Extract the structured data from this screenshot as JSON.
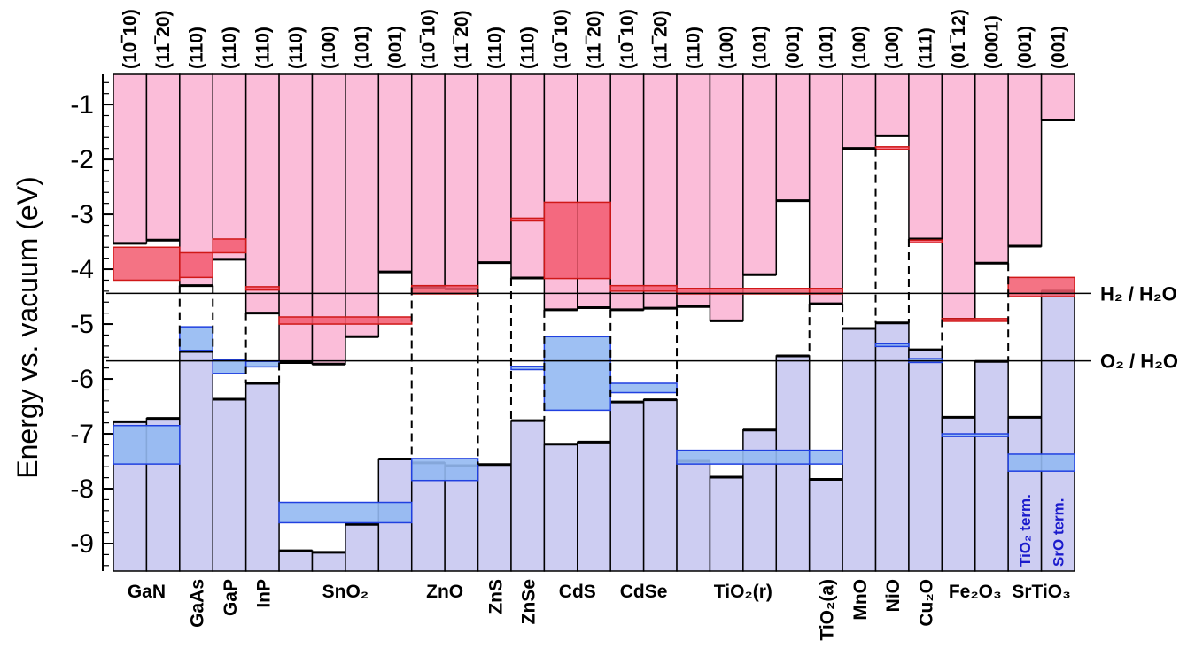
{
  "colors": {
    "cb_fill": "#fbbdd9",
    "vb_fill": "#cdcdf2",
    "cb_band": "#f25a6e",
    "cb_band_line": "#d01818",
    "vb_band": "#93b9f2",
    "vb_band_dark": "#6a92ee",
    "vb_band_line": "#2040e0",
    "term_text": "#1a1acc"
  },
  "chart_data": {
    "type": "bar",
    "title": "",
    "xlabel": "",
    "ylabel": "Energy vs. vacuum (eV)",
    "ylim": [
      -9.5,
      -0.45
    ],
    "yticks": [
      -1,
      -2,
      -3,
      -4,
      -5,
      -6,
      -7,
      -8,
      -9
    ],
    "ytick_labels": [
      "-1",
      "-2",
      "-3",
      "-4",
      "-5",
      "-6",
      "-7",
      "-8",
      "-9"
    ],
    "reference_lines": [
      {
        "name": "H2/H2O",
        "value": -4.44,
        "label": "H₂ / H₂O"
      },
      {
        "name": "O2/H2O",
        "value": -5.67,
        "label": "O₂ / H₂O"
      }
    ],
    "facets": [
      {
        "facet": "(10‾10)",
        "cbm": -3.53,
        "vbm": -6.78
      },
      {
        "facet": "(11‾20)",
        "cbm": -3.47,
        "vbm": -6.72
      },
      {
        "facet": "(110)",
        "cbm": -4.3,
        "vbm": -5.5
      },
      {
        "facet": "(110)",
        "cbm": -3.82,
        "vbm": -6.37
      },
      {
        "facet": "(110)",
        "cbm": -4.8,
        "vbm": -6.08
      },
      {
        "facet": "(110)",
        "cbm": -5.7,
        "vbm": -9.13
      },
      {
        "facet": "(100)",
        "cbm": -5.73,
        "vbm": -9.16
      },
      {
        "facet": "(101)",
        "cbm": -5.23,
        "vbm": -8.65
      },
      {
        "facet": "(001)",
        "cbm": -4.05,
        "vbm": -7.46
      },
      {
        "facet": "(10‾10)",
        "cbm": -4.33,
        "vbm": -7.53
      },
      {
        "facet": "(11‾20)",
        "cbm": -4.36,
        "vbm": -7.58
      },
      {
        "facet": "(110)",
        "cbm": -3.88,
        "vbm": -7.56
      },
      {
        "facet": "(110)",
        "cbm": -4.16,
        "vbm": -6.76
      },
      {
        "facet": "(10‾10)",
        "cbm": -4.74,
        "vbm": -7.19
      },
      {
        "facet": "(11‾20)",
        "cbm": -4.7,
        "vbm": -7.15
      },
      {
        "facet": "(10‾10)",
        "cbm": -4.74,
        "vbm": -6.42
      },
      {
        "facet": "(11‾20)",
        "cbm": -4.71,
        "vbm": -6.38
      },
      {
        "facet": "(110)",
        "cbm": -4.68,
        "vbm": -7.5
      },
      {
        "facet": "(100)",
        "cbm": -4.94,
        "vbm": -7.79
      },
      {
        "facet": "(101)",
        "cbm": -4.1,
        "vbm": -6.93
      },
      {
        "facet": "(001)",
        "cbm": -2.75,
        "vbm": -5.58
      },
      {
        "facet": "(101)",
        "cbm": -4.63,
        "vbm": -7.83
      },
      {
        "facet": "(100)",
        "cbm": -1.8,
        "vbm": -5.08
      },
      {
        "facet": "(100)",
        "cbm": -1.57,
        "vbm": -4.98
      },
      {
        "facet": "(111)",
        "cbm": -3.45,
        "vbm": -5.47
      },
      {
        "facet": "(01‾12)",
        "cbm": -4.91,
        "vbm": -6.7
      },
      {
        "facet": "(0001)",
        "cbm": -3.89,
        "vbm": -5.68
      },
      {
        "facet": "(001)",
        "cbm": -3.58,
        "vbm": -6.7
      },
      {
        "facet": "(001)",
        "cbm": -1.28,
        "vbm": -4.4
      }
    ],
    "materials": [
      {
        "name": "GaN",
        "first": 0,
        "count": 2,
        "label": "GaN",
        "vertical": false,
        "exp_cb": [
          -3.6,
          -4.2
        ],
        "exp_vb": [
          -6.85,
          -7.55
        ]
      },
      {
        "name": "GaAs",
        "first": 2,
        "count": 1,
        "label": "GaAs",
        "vertical": true,
        "exp_cb": [
          -3.7,
          -4.15
        ],
        "exp_vb": [
          -5.05,
          -5.48
        ]
      },
      {
        "name": "GaP",
        "first": 3,
        "count": 1,
        "label": "GaP",
        "vertical": true,
        "exp_cb": [
          -3.45,
          -3.7
        ],
        "exp_vb": [
          -5.65,
          -5.9
        ]
      },
      {
        "name": "InP",
        "first": 4,
        "count": 1,
        "label": "InP",
        "vertical": true,
        "exp_cb": [
          -4.32,
          -4.38
        ],
        "exp_vb": [
          -5.68,
          -5.78
        ]
      },
      {
        "name": "SnO2",
        "first": 5,
        "count": 4,
        "label": "SnO₂",
        "vertical": false,
        "exp_cb": [
          -4.87,
          -5.0
        ],
        "exp_vb": [
          -8.25,
          -8.62
        ]
      },
      {
        "name": "ZnO",
        "first": 9,
        "count": 2,
        "label": "ZnO",
        "vertical": false,
        "exp_cb": [
          -4.3,
          -4.45
        ],
        "exp_vb": [
          -7.45,
          -7.85
        ]
      },
      {
        "name": "ZnS",
        "first": 11,
        "count": 1,
        "label": "ZnS",
        "vertical": true,
        "exp_cb": null,
        "exp_vb": null
      },
      {
        "name": "ZnSe",
        "first": 12,
        "count": 1,
        "label": "ZnSe",
        "vertical": true,
        "exp_cb": [
          -3.07,
          -3.12
        ],
        "exp_vb": [
          -5.77,
          -5.83
        ]
      },
      {
        "name": "CdS",
        "first": 13,
        "count": 2,
        "label": "CdS",
        "vertical": false,
        "exp_cb": [
          -2.78,
          -4.17
        ],
        "exp_vb": [
          -5.23,
          -6.57
        ]
      },
      {
        "name": "CdSe",
        "first": 15,
        "count": 2,
        "label": "CdSe",
        "vertical": false,
        "exp_cb": [
          -4.3,
          -4.4
        ],
        "exp_vb": [
          -6.08,
          -6.25
        ]
      },
      {
        "name": "TiO2(r)",
        "first": 17,
        "count": 4,
        "label": "TiO₂(r)",
        "vertical": false,
        "exp_cb": [
          -4.35,
          -4.45
        ],
        "exp_vb": [
          -7.3,
          -7.55
        ]
      },
      {
        "name": "TiO2(a)",
        "first": 21,
        "count": 1,
        "label": "TiO₂(a)",
        "vertical": true,
        "exp_cb": [
          -4.35,
          -4.45
        ],
        "exp_vb": [
          -7.3,
          -7.55
        ]
      },
      {
        "name": "MnO",
        "first": 22,
        "count": 1,
        "label": "MnO",
        "vertical": true,
        "exp_cb": null,
        "exp_vb": null
      },
      {
        "name": "NiO",
        "first": 23,
        "count": 1,
        "label": "NiO",
        "vertical": true,
        "exp_cb": [
          -1.77,
          -1.81
        ],
        "exp_vb": [
          -5.36,
          -5.4
        ]
      },
      {
        "name": "Cu2O",
        "first": 24,
        "count": 1,
        "label": "Cu₂O",
        "vertical": true,
        "exp_cb": [
          -3.47,
          -3.5
        ],
        "exp_vb": [
          -5.63,
          -5.7
        ]
      },
      {
        "name": "Fe2O3",
        "first": 25,
        "count": 2,
        "label": "Fe₂O₃",
        "vertical": false,
        "exp_cb": [
          -4.9,
          -4.95
        ],
        "exp_vb": [
          -7.0,
          -7.05
        ]
      },
      {
        "name": "SrTiO3",
        "first": 27,
        "count": 2,
        "label": "SrTiO₃",
        "vertical": false,
        "exp_cb": [
          -4.15,
          -4.5
        ],
        "exp_vb": [
          -7.37,
          -7.68
        ]
      }
    ],
    "terminations": [
      {
        "bar": 27,
        "label": "TiO₂ term."
      },
      {
        "bar": 28,
        "label": "SrO term."
      }
    ]
  }
}
